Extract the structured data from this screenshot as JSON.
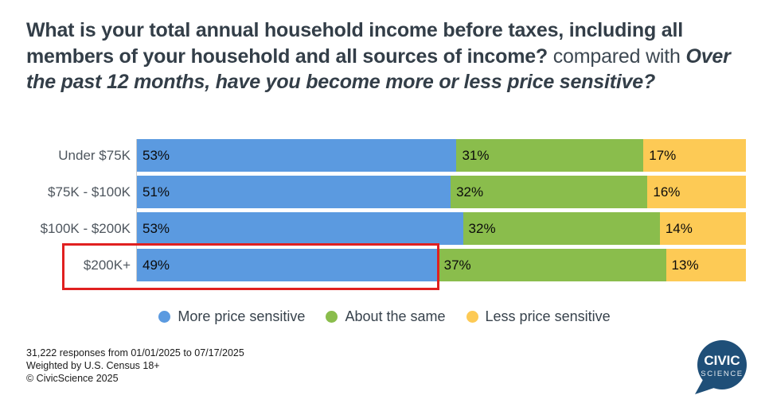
{
  "title": {
    "bold": "What is your total annual household income before taxes, including all members of your household and all sources of income?",
    "connector": " compared with ",
    "italic": "Over the past 12 months, have you become more or less price sensitive?"
  },
  "chart_data": {
    "type": "bar",
    "orientation": "horizontal",
    "stacked": true,
    "normalized_to_100": true,
    "categories": [
      "Under $75K",
      "$75K - $100K",
      "$100K - $200K",
      "$200K+"
    ],
    "series": [
      {
        "name": "More price sensitive",
        "color": "#5B9AE0",
        "values": [
          53,
          51,
          53,
          49
        ]
      },
      {
        "name": "About the same",
        "color": "#8ABD4C",
        "values": [
          31,
          32,
          32,
          37
        ]
      },
      {
        "name": "Less price sensitive",
        "color": "#FDCA55",
        "values": [
          17,
          16,
          14,
          13
        ]
      }
    ],
    "value_suffix": "%",
    "legend_position": "bottom",
    "grid": false,
    "highlight": {
      "category": "$200K+",
      "segment": "More price sensitive",
      "box_color": "#E02020"
    }
  },
  "footer": {
    "line1": "31,222 responses from 01/01/2025 to 07/17/2025",
    "line2": "Weighted by U.S. Census 18+",
    "line3": "© CivicScience 2025"
  },
  "logo": {
    "line1": "CIVIC",
    "line2": "SCIENCE",
    "color": "#1F4F78"
  }
}
